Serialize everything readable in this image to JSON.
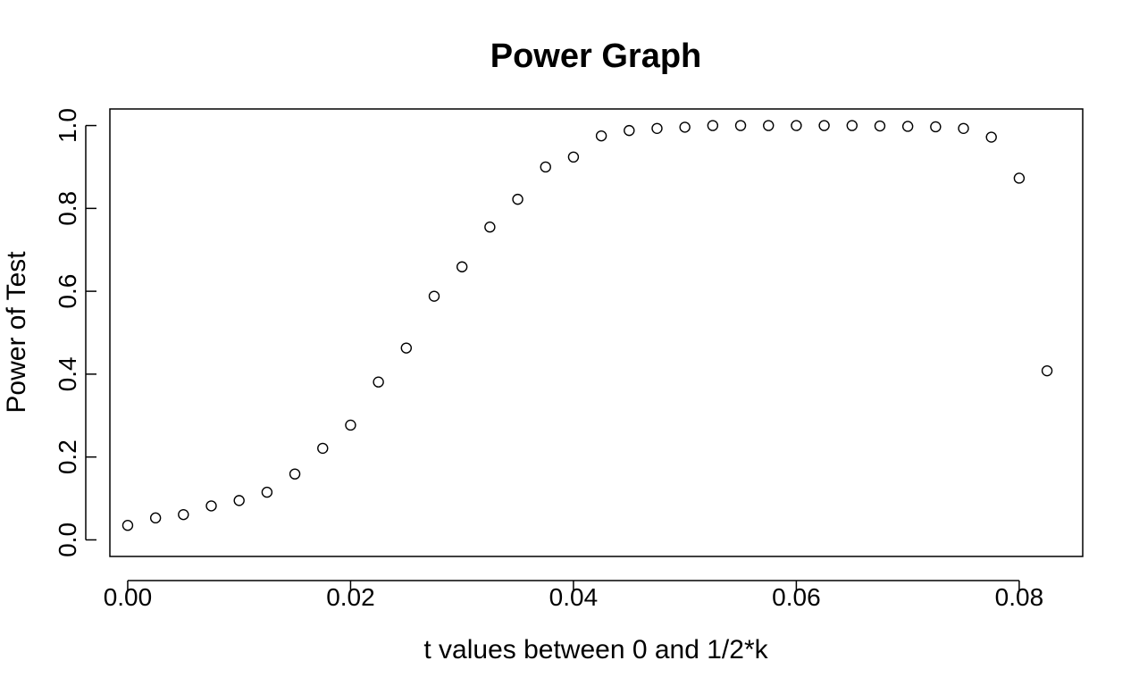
{
  "chart_data": {
    "type": "scatter",
    "title": "Power Graph",
    "xlabel": "t values between 0 and 1/2*k",
    "ylabel": "Power of Test",
    "xlim": [
      -0.0016,
      0.0857
    ],
    "ylim": [
      -0.04,
      1.04
    ],
    "x_ticks": [
      0.0,
      0.02,
      0.04,
      0.06,
      0.08
    ],
    "x_tick_labels": [
      "0.00",
      "0.02",
      "0.04",
      "0.06",
      "0.08"
    ],
    "y_ticks": [
      0.0,
      0.2,
      0.4,
      0.6,
      0.8,
      1.0
    ],
    "y_tick_labels": [
      "0.0",
      "0.2",
      "0.4",
      "0.6",
      "0.8",
      "1.0"
    ],
    "grid": false,
    "marker": "open-circle",
    "color": "#000000",
    "x": [
      0.0,
      0.0025,
      0.005,
      0.0075,
      0.01,
      0.0125,
      0.015,
      0.0175,
      0.02,
      0.0225,
      0.025,
      0.0275,
      0.03,
      0.0325,
      0.035,
      0.0375,
      0.04,
      0.0425,
      0.045,
      0.0475,
      0.05,
      0.0525,
      0.055,
      0.0575,
      0.06,
      0.0625,
      0.065,
      0.0675,
      0.07,
      0.0725,
      0.075,
      0.0775,
      0.08,
      0.0825
    ],
    "y": [
      0.035,
      0.053,
      0.061,
      0.082,
      0.095,
      0.115,
      0.159,
      0.221,
      0.277,
      0.381,
      0.463,
      0.588,
      0.659,
      0.755,
      0.822,
      0.9,
      0.924,
      0.975,
      0.988,
      0.993,
      0.996,
      1.0,
      1.0,
      1.0,
      1.0,
      1.0,
      1.0,
      0.999,
      0.998,
      0.997,
      0.993,
      0.972,
      0.873,
      0.408
    ]
  }
}
